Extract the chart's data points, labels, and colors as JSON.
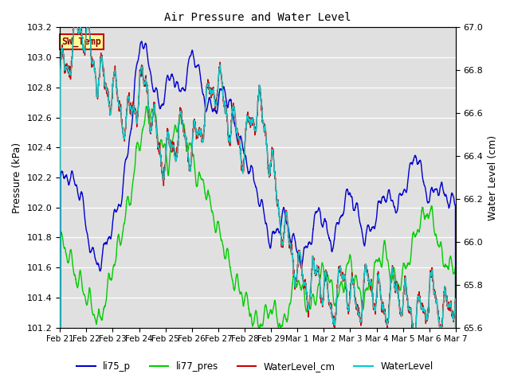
{
  "title": "Air Pressure and Water Level",
  "ylabel_left": "Pressure (kPa)",
  "ylabel_right": "Water Level (cm)",
  "ylim_left": [
    101.2,
    103.2
  ],
  "ylim_right": [
    65.6,
    67.0
  ],
  "yticks_left": [
    101.2,
    101.4,
    101.6,
    101.8,
    102.0,
    102.2,
    102.4,
    102.6,
    102.8,
    103.0,
    103.2
  ],
  "yticks_right": [
    65.6,
    65.8,
    66.0,
    66.2,
    66.4,
    66.6,
    66.8,
    67.0
  ],
  "xtick_labels": [
    "Feb 21",
    "Feb 22",
    "Feb 23",
    "Feb 24",
    "Feb 25",
    "Feb 26",
    "Feb 27",
    "Feb 28",
    "Feb 29",
    "Mar 1",
    "Mar 2",
    "Mar 3",
    "Mar 4",
    "Mar 5",
    "Mar 6",
    "Mar 7"
  ],
  "colors": {
    "li75_p": "#0000cc",
    "li77_pres": "#00cc00",
    "WaterLevel_cm": "#cc0000",
    "WaterLevel": "#00cccc"
  },
  "bg_color": "#e0e0e0",
  "grid_color": "#ffffff",
  "annotation_text": "SW_Temp",
  "annotation_bg": "#ffff99",
  "annotation_border": "#cc0000",
  "legend_labels": [
    "li75_p",
    "li77_pres",
    "WaterLevel_cm",
    "WaterLevel"
  ]
}
